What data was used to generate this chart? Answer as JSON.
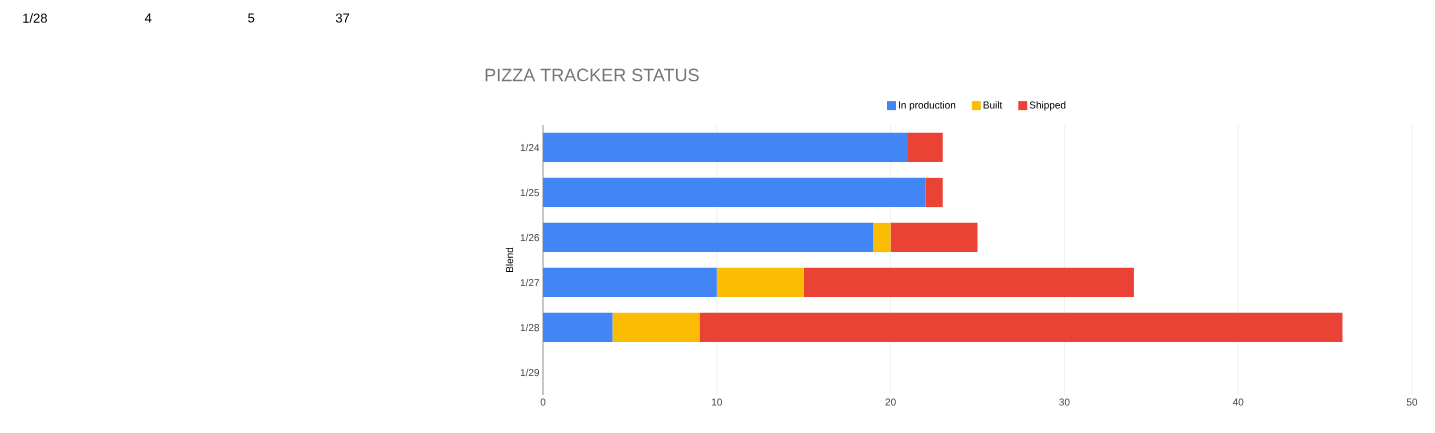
{
  "chart_data": {
    "type": "bar",
    "orientation": "horizontal",
    "stacked": true,
    "title": "PIZZA TRACKER STATUS",
    "ylabel": "Blend",
    "categories": [
      "1/24",
      "1/25",
      "1/26",
      "1/27",
      "1/28",
      "1/29"
    ],
    "series": [
      {
        "name": "In production",
        "color": "#4285f4",
        "values": [
          21,
          22,
          19,
          10,
          4,
          null
        ]
      },
      {
        "name": "Built",
        "color": "#fbbc04",
        "values": [
          0,
          0,
          1,
          5,
          5,
          null
        ]
      },
      {
        "name": "Shipped",
        "color": "#ea4335",
        "values": [
          2,
          1,
          5,
          19,
          37,
          null
        ]
      }
    ],
    "xlim": [
      0,
      50
    ],
    "xticks": [
      0,
      10,
      20,
      30,
      40,
      50
    ],
    "grid": "x",
    "legend": "top",
    "annotations": [
      "1/28",
      "4",
      "5",
      "37"
    ]
  }
}
